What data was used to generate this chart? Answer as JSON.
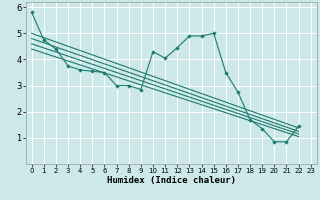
{
  "xlabel": "Humidex (Indice chaleur)",
  "bg_color": "#cce8e8",
  "grid_color": "#ffffff",
  "line_color": "#1a7a6e",
  "xlim": [
    -0.5,
    23.5
  ],
  "ylim": [
    0,
    6.2
  ],
  "xticks": [
    0,
    1,
    2,
    3,
    4,
    5,
    6,
    7,
    8,
    9,
    10,
    11,
    12,
    13,
    14,
    15,
    16,
    17,
    18,
    19,
    20,
    21,
    22,
    23
  ],
  "yticks": [
    1,
    2,
    3,
    4,
    5,
    6
  ],
  "data_series": [
    [
      0,
      5.8
    ],
    [
      1,
      4.75
    ],
    [
      2,
      4.4
    ],
    [
      3,
      3.75
    ],
    [
      4,
      3.6
    ],
    [
      5,
      3.55
    ],
    [
      6,
      3.5
    ],
    [
      7,
      3.0
    ],
    [
      8,
      3.0
    ],
    [
      9,
      2.85
    ],
    [
      10,
      4.3
    ],
    [
      11,
      4.05
    ],
    [
      12,
      4.45
    ],
    [
      13,
      4.9
    ],
    [
      14,
      4.9
    ],
    [
      15,
      5.0
    ],
    [
      16,
      3.5
    ],
    [
      17,
      2.75
    ],
    [
      18,
      1.7
    ],
    [
      19,
      1.35
    ],
    [
      20,
      0.85
    ],
    [
      21,
      0.85
    ],
    [
      22,
      1.45
    ]
  ],
  "regression_lines": [
    {
      "x0": 0,
      "y0": 5.0,
      "x1": 22,
      "y1": 1.38
    },
    {
      "x0": 0,
      "y0": 4.8,
      "x1": 22,
      "y1": 1.25
    },
    {
      "x0": 0,
      "y0": 4.6,
      "x1": 22,
      "y1": 1.15
    },
    {
      "x0": 0,
      "y0": 4.4,
      "x1": 22,
      "y1": 1.05
    }
  ]
}
